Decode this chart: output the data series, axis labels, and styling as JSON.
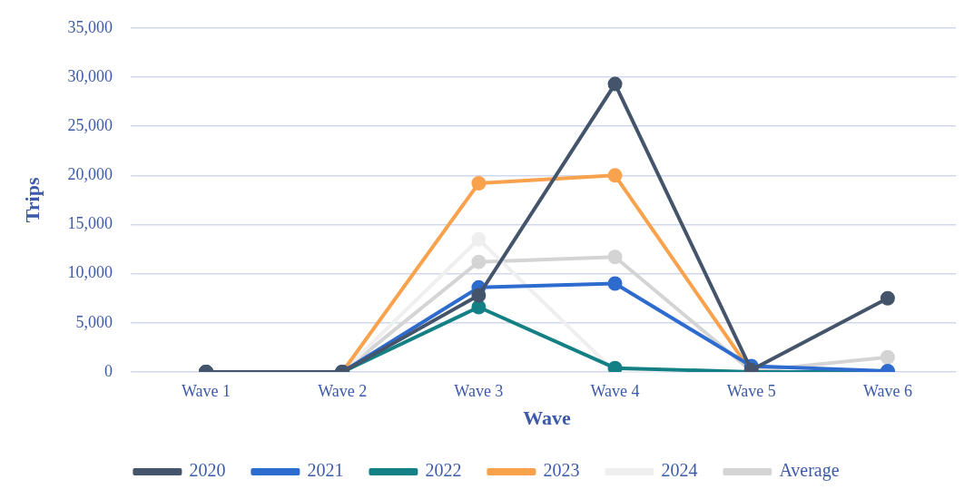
{
  "chart_data": {
    "type": "line",
    "xlabel": "Wave",
    "ylabel": "Trips",
    "categories": [
      "Wave 1",
      "Wave 2",
      "Wave 3",
      "Wave 4",
      "Wave 5",
      "Wave 6"
    ],
    "series": [
      {
        "name": "2020",
        "color": "#44546a",
        "values": [
          0,
          0,
          7800,
          29300,
          200,
          7500
        ]
      },
      {
        "name": "2021",
        "color": "#2e6bcf",
        "values": [
          0,
          0,
          8600,
          9000,
          600,
          100
        ]
      },
      {
        "name": "2022",
        "color": "#138086",
        "values": [
          0,
          0,
          6600,
          400,
          0,
          0
        ]
      },
      {
        "name": "2023",
        "color": "#f9a24e",
        "values": [
          0,
          0,
          19200,
          20000,
          0,
          null
        ]
      },
      {
        "name": "2024",
        "color": "#efefef",
        "values": [
          0,
          0,
          13500,
          0,
          0,
          0
        ]
      },
      {
        "name": "Average",
        "color": "#d4d4d4",
        "values": [
          0,
          0,
          11200,
          11700,
          100,
          1500
        ]
      }
    ],
    "ylim": [
      0,
      35000
    ],
    "yticks": [
      0,
      {
        "value": 5000,
        "label": "5,000"
      },
      {
        "value": 10000,
        "label": "10,000"
      },
      {
        "value": 15000,
        "label": "15,000"
      },
      {
        "value": 20000,
        "label": "20,000"
      },
      {
        "value": 25000,
        "label": "25,000"
      },
      {
        "value": 30000,
        "label": "30,000"
      },
      {
        "value": 35000,
        "label": "35,000"
      }
    ],
    "grid": "y",
    "legend": "bottom",
    "marker": "circle",
    "line_style": "solid"
  }
}
